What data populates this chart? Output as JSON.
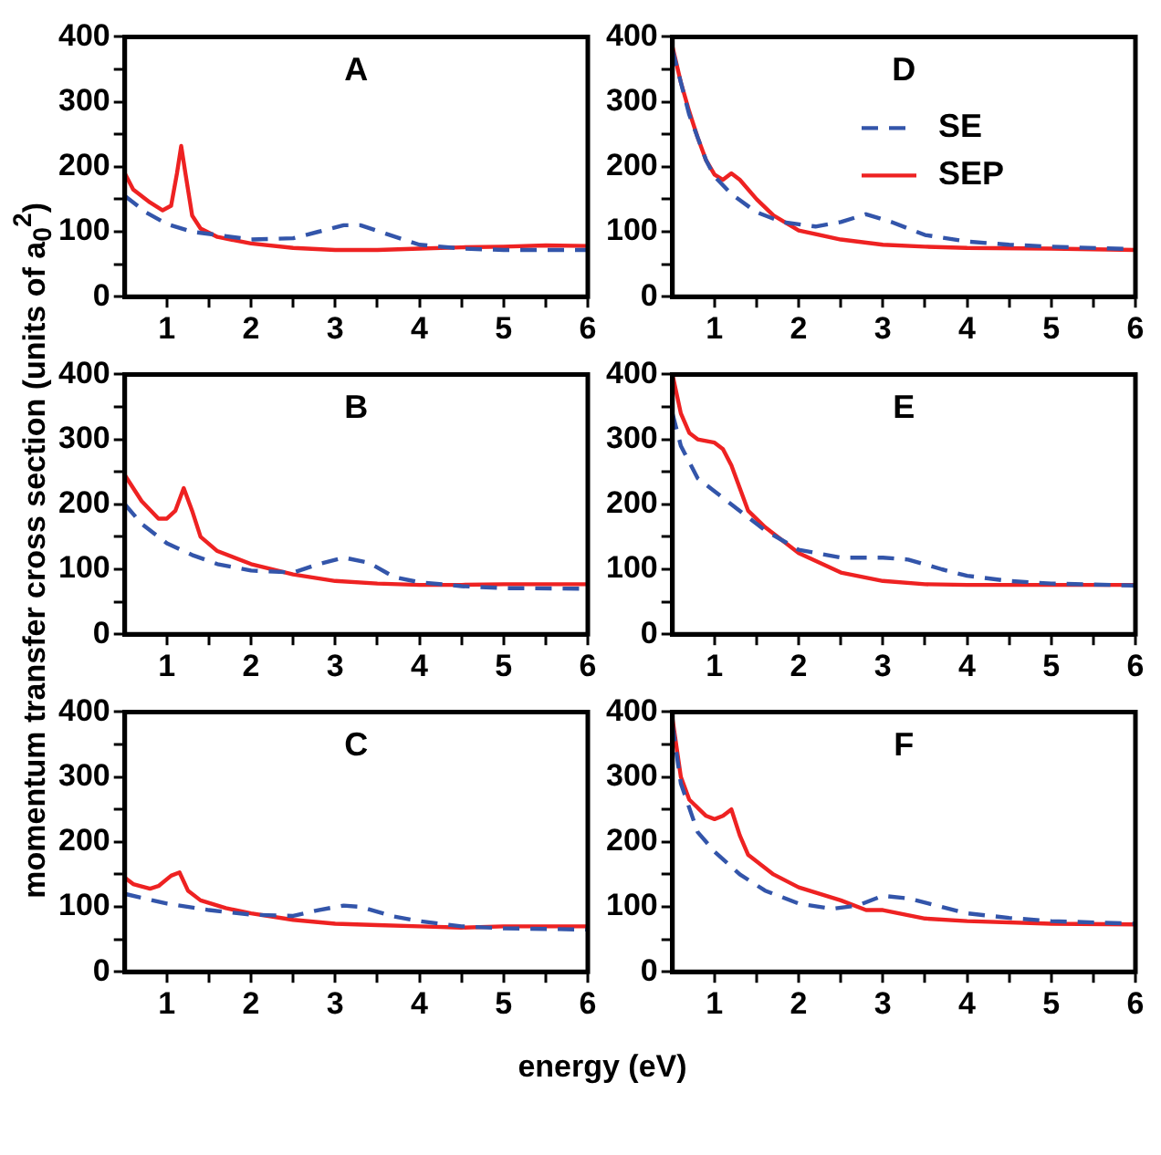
{
  "chart_data": [
    {
      "type": "line",
      "title": "A",
      "ylabel": "momentum transfer cross section (units of a$_{0}$$^{2}$)",
      "xlim": [
        0.5,
        6
      ],
      "ylim": [
        0,
        400
      ],
      "xticks": [
        {
          "value": 1.5,
          "label": null
        },
        {
          "value": 2.5,
          "label": null
        },
        {
          "value": 3.5,
          "label": null
        },
        {
          "value": 4.5,
          "label": null
        },
        {
          "value": 5.5,
          "label": null
        },
        1,
        2,
        3,
        4,
        5,
        6
      ],
      "yticks": [
        0,
        100,
        200,
        300,
        400,
        {
          "value": 50,
          "label": null
        },
        {
          "value": 150,
          "label": null
        },
        {
          "value": 250,
          "label": null
        },
        {
          "value": 350,
          "label": null
        }
      ],
      "grid": false,
      "legend": false,
      "marker": "none",
      "series": [
        {
          "color": "#3355aa",
          "line_style": "dashed",
          "x": [
            0.5,
            0.75,
            1,
            1.3,
            1.6,
            2,
            2.5,
            2.8,
            3.1,
            3.3,
            3.6,
            4,
            4.5,
            5,
            6
          ],
          "values": [
            155,
            130,
            112,
            100,
            95,
            88,
            90,
            100,
            110,
            110,
            97,
            80,
            74,
            72,
            72
          ]
        },
        {
          "color": "#ee2222",
          "line_style": "solid",
          "x": [
            0.5,
            0.6,
            0.8,
            0.95,
            1.05,
            1.12,
            1.17,
            1.22,
            1.3,
            1.4,
            1.6,
            2,
            2.5,
            3,
            3.5,
            4,
            4.5,
            5,
            5.5,
            6
          ],
          "values": [
            190,
            165,
            145,
            133,
            140,
            190,
            232,
            190,
            125,
            105,
            92,
            82,
            75,
            72,
            72,
            74,
            76,
            77,
            79,
            78
          ]
        }
      ]
    },
    {
      "type": "line",
      "title": "D",
      "xlim": [
        0.5,
        6
      ],
      "ylim": [
        0,
        400
      ],
      "xticks": [
        {
          "value": 1.5,
          "label": null
        },
        {
          "value": 2.5,
          "label": null
        },
        {
          "value": 3.5,
          "label": null
        },
        {
          "value": 4.5,
          "label": null
        },
        {
          "value": 5.5,
          "label": null
        },
        1,
        2,
        3,
        4,
        5,
        6
      ],
      "yticks": [
        0,
        100,
        200,
        300,
        400,
        {
          "value": 50,
          "label": null
        },
        {
          "value": 150,
          "label": null
        },
        {
          "value": 250,
          "label": null
        },
        {
          "value": 350,
          "label": null
        }
      ],
      "grid": false,
      "legend": "top right",
      "marker": "none",
      "series": [
        {
          "name": "SE",
          "color": "#3355aa",
          "line_style": "dashed",
          "x": [
            0.5,
            0.7,
            0.9,
            1,
            1.2,
            1.5,
            1.8,
            2.2,
            2.5,
            2.8,
            3.1,
            3.5,
            4,
            4.5,
            5,
            6
          ],
          "values": [
            380,
            280,
            210,
            185,
            158,
            130,
            115,
            108,
            115,
            127,
            115,
            95,
            85,
            80,
            77,
            73
          ]
        },
        {
          "name": "SEP",
          "color": "#ee2222",
          "line_style": "solid",
          "x": [
            0.5,
            0.6,
            0.7,
            0.8,
            0.9,
            1,
            1.1,
            1.2,
            1.3,
            1.5,
            1.7,
            2,
            2.5,
            3,
            3.5,
            4,
            5,
            6
          ],
          "values": [
            385,
            330,
            285,
            245,
            210,
            188,
            180,
            190,
            180,
            150,
            125,
            102,
            88,
            80,
            77,
            75,
            74,
            72
          ]
        }
      ]
    },
    {
      "type": "line",
      "title": "B",
      "xlim": [
        0.5,
        6
      ],
      "ylim": [
        0,
        400
      ],
      "xticks": [
        {
          "value": 1.5,
          "label": null
        },
        {
          "value": 2.5,
          "label": null
        },
        {
          "value": 3.5,
          "label": null
        },
        {
          "value": 4.5,
          "label": null
        },
        {
          "value": 5.5,
          "label": null
        },
        1,
        2,
        3,
        4,
        5,
        6
      ],
      "yticks": [
        0,
        100,
        200,
        300,
        400,
        {
          "value": 50,
          "label": null
        },
        {
          "value": 150,
          "label": null
        },
        {
          "value": 250,
          "label": null
        },
        {
          "value": 350,
          "label": null
        }
      ],
      "grid": false,
      "legend": false,
      "marker": "none",
      "series": [
        {
          "color": "#3355aa",
          "line_style": "dashed",
          "x": [
            0.5,
            0.7,
            1,
            1.3,
            1.6,
            2,
            2.5,
            2.8,
            3.1,
            3.4,
            3.7,
            4,
            4.5,
            5,
            6
          ],
          "values": [
            200,
            170,
            140,
            122,
            108,
            98,
            95,
            108,
            118,
            110,
            88,
            80,
            74,
            71,
            70
          ]
        },
        {
          "color": "#ee2222",
          "line_style": "solid",
          "x": [
            0.5,
            0.7,
            0.9,
            1,
            1.1,
            1.2,
            1.3,
            1.4,
            1.6,
            2,
            2.5,
            3,
            3.5,
            4,
            4.5,
            5,
            6
          ],
          "values": [
            245,
            205,
            178,
            178,
            190,
            225,
            190,
            150,
            128,
            108,
            92,
            82,
            78,
            76,
            76,
            77,
            77
          ]
        }
      ]
    },
    {
      "type": "line",
      "title": "E",
      "xlim": [
        0.5,
        6
      ],
      "ylim": [
        0,
        400
      ],
      "xticks": [
        {
          "value": 1.5,
          "label": null
        },
        {
          "value": 2.5,
          "label": null
        },
        {
          "value": 3.5,
          "label": null
        },
        {
          "value": 4.5,
          "label": null
        },
        {
          "value": 5.5,
          "label": null
        },
        1,
        2,
        3,
        4,
        5,
        6
      ],
      "yticks": [
        0,
        100,
        200,
        300,
        400,
        {
          "value": 50,
          "label": null
        },
        {
          "value": 150,
          "label": null
        },
        {
          "value": 250,
          "label": null
        },
        {
          "value": 350,
          "label": null
        }
      ],
      "grid": false,
      "legend": false,
      "marker": "none",
      "series": [
        {
          "color": "#3355aa",
          "line_style": "dashed",
          "x": [
            0.5,
            0.6,
            0.8,
            1,
            1.3,
            1.6,
            2,
            2.5,
            3,
            3.3,
            3.7,
            4,
            4.5,
            5,
            6
          ],
          "values": [
            340,
            290,
            240,
            220,
            190,
            160,
            130,
            118,
            118,
            115,
            100,
            90,
            82,
            78,
            75
          ]
        },
        {
          "color": "#ee2222",
          "line_style": "solid",
          "x": [
            0.5,
            0.6,
            0.7,
            0.8,
            1,
            1.1,
            1.2,
            1.3,
            1.4,
            1.6,
            2,
            2.5,
            3,
            3.5,
            4,
            5,
            6
          ],
          "values": [
            400,
            340,
            310,
            300,
            295,
            285,
            260,
            225,
            190,
            165,
            125,
            95,
            82,
            77,
            76,
            76,
            76
          ]
        }
      ]
    },
    {
      "type": "line",
      "title": "C",
      "xlabel": "energy (eV)",
      "xlim": [
        0.5,
        6
      ],
      "ylim": [
        0,
        400
      ],
      "xticks": [
        {
          "value": 1.5,
          "label": null
        },
        {
          "value": 2.5,
          "label": null
        },
        {
          "value": 3.5,
          "label": null
        },
        {
          "value": 4.5,
          "label": null
        },
        {
          "value": 5.5,
          "label": null
        },
        1,
        2,
        3,
        4,
        5,
        6
      ],
      "yticks": [
        0,
        100,
        200,
        300,
        400,
        {
          "value": 50,
          "label": null
        },
        {
          "value": 150,
          "label": null
        },
        {
          "value": 250,
          "label": null
        },
        {
          "value": 350,
          "label": null
        }
      ],
      "grid": false,
      "legend": false,
      "marker": "none",
      "series": [
        {
          "color": "#3355aa",
          "line_style": "dashed",
          "x": [
            0.5,
            1,
            1.5,
            2,
            2.5,
            2.8,
            3.1,
            3.3,
            3.7,
            4,
            4.5,
            5,
            6
          ],
          "values": [
            120,
            105,
            95,
            88,
            86,
            95,
            102,
            100,
            85,
            78,
            70,
            67,
            65
          ]
        },
        {
          "color": "#ee2222",
          "line_style": "solid",
          "x": [
            0.5,
            0.6,
            0.8,
            0.9,
            1.05,
            1.15,
            1.25,
            1.4,
            1.7,
            2,
            2.5,
            3,
            3.5,
            4,
            4.5,
            5,
            6
          ],
          "values": [
            145,
            135,
            128,
            132,
            148,
            153,
            125,
            110,
            98,
            90,
            80,
            74,
            72,
            70,
            68,
            70,
            70
          ]
        }
      ]
    },
    {
      "type": "line",
      "title": "F",
      "xlim": [
        0.5,
        6
      ],
      "ylim": [
        0,
        400
      ],
      "xticks": [
        {
          "value": 1.5,
          "label": null
        },
        {
          "value": 2.5,
          "label": null
        },
        {
          "value": 3.5,
          "label": null
        },
        {
          "value": 4.5,
          "label": null
        },
        {
          "value": 5.5,
          "label": null
        },
        1,
        2,
        3,
        4,
        5,
        6
      ],
      "yticks": [
        0,
        100,
        200,
        300,
        400,
        {
          "value": 50,
          "label": null
        },
        {
          "value": 150,
          "label": null
        },
        {
          "value": 250,
          "label": null
        },
        {
          "value": 350,
          "label": null
        }
      ],
      "grid": false,
      "legend": false,
      "marker": "none",
      "series": [
        {
          "color": "#3355aa",
          "line_style": "dashed",
          "x": [
            0.5,
            0.6,
            0.8,
            1,
            1.3,
            1.6,
            2,
            2.4,
            2.7,
            3,
            3.3,
            3.7,
            4,
            4.5,
            5,
            6
          ],
          "values": [
            380,
            290,
            215,
            185,
            150,
            125,
            105,
            97,
            102,
            117,
            113,
            100,
            90,
            83,
            78,
            74
          ]
        },
        {
          "color": "#ee2222",
          "line_style": "solid",
          "x": [
            0.5,
            0.6,
            0.7,
            0.9,
            1,
            1.1,
            1.2,
            1.3,
            1.4,
            1.7,
            2,
            2.5,
            2.8,
            3,
            3.5,
            4,
            5,
            6
          ],
          "values": [
            390,
            300,
            265,
            240,
            235,
            240,
            250,
            210,
            180,
            150,
            130,
            110,
            95,
            95,
            82,
            78,
            74,
            73
          ]
        }
      ]
    }
  ]
}
